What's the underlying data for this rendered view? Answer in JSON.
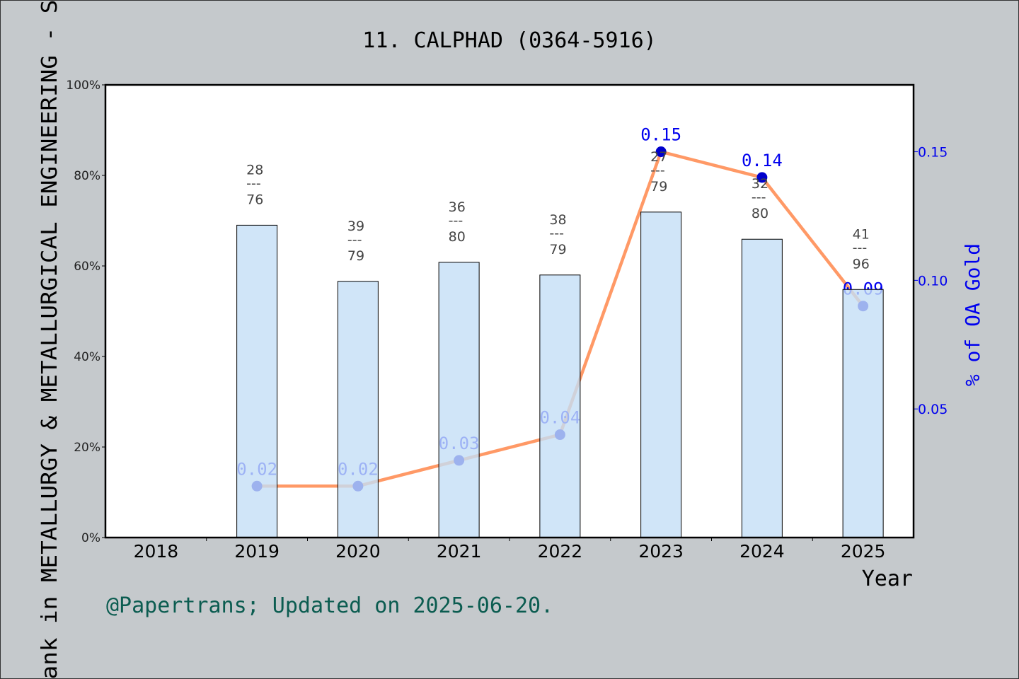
{
  "chart_data": {
    "type": "bar",
    "title": "11. CALPHAD (0364-5916)",
    "xlabel": "Year",
    "ylabel": "Rank in METALLURGY & METALLURGICAL ENGINEERING - SC",
    "y2label": "% of OA Gold",
    "categories": [
      "2018",
      "2019",
      "2020",
      "2021",
      "2022",
      "2023",
      "2024",
      "2025"
    ],
    "ylim": [
      0,
      100
    ],
    "yticks": [
      "0%",
      "20%",
      "40%",
      "60%",
      "80%",
      "100%"
    ],
    "y2lim": [
      0,
      0.176
    ],
    "y2ticks": [
      "0.05",
      "0.10",
      "0.15"
    ],
    "series": [
      {
        "kind": "bar",
        "values": [
          null,
          69,
          56.6,
          60.8,
          58,
          71.9,
          65.9,
          54.8
        ],
        "labels": [
          null,
          [
            "28",
            "---",
            "76"
          ],
          [
            "39",
            "---",
            "79"
          ],
          [
            "36",
            "---",
            "80"
          ],
          [
            "38",
            "---",
            "79"
          ],
          [
            "27",
            "---",
            "79"
          ],
          [
            "32",
            "---",
            "80"
          ],
          [
            "41",
            "---",
            "96"
          ]
        ]
      },
      {
        "kind": "line",
        "axis": "right",
        "values": [
          null,
          0.02,
          0.02,
          0.03,
          0.04,
          0.15,
          0.14,
          0.09
        ],
        "labels": [
          null,
          "0.02",
          "0.02",
          "0.03",
          "0.04",
          "0.15",
          "0.14",
          "0.09"
        ]
      }
    ],
    "grid": false,
    "footer": "@Papertrans; Updated on 2025-06-20.",
    "colors": {
      "bar": "#c4dff6",
      "line": "#ff9966",
      "marker": "#0000cc",
      "right_axis": "#0000ee",
      "footer": "#0b5c50",
      "background": "#c5c9cc"
    }
  }
}
